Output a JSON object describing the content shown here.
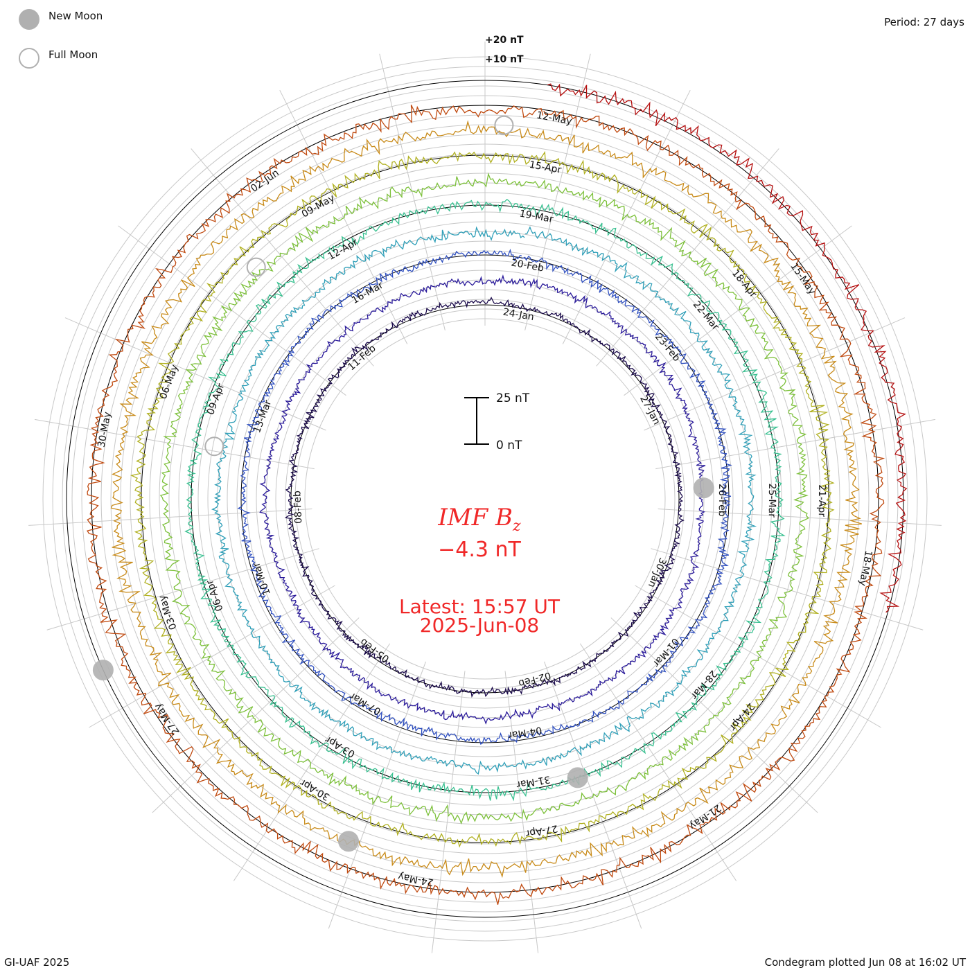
{
  "header": {
    "legend_new_moon": "New Moon",
    "legend_full_moon": "Full Moon",
    "period": "Period: 27 days",
    "scale_top": "+20 nT",
    "scale_second": "+10 nT"
  },
  "footer": {
    "left": "GI-UAF 2025",
    "right": "Condegram plotted Jun 08 at 16:02 UT"
  },
  "center": {
    "scale_top": "25 nT",
    "scale_bottom": "0 nT",
    "title_main": "IMF B",
    "title_sub": "z",
    "value": "−4.3 nT",
    "latest_label": "Latest: 15:57 UT",
    "latest_date": "2025-Jun-08"
  },
  "colors": {
    "ring_0": "#1a0a4a",
    "ring_1": "#2a1a9a",
    "ring_2": "#3050c0",
    "ring_3": "#2f9fb8",
    "ring_4": "#38c090",
    "ring_5": "#7cc03a",
    "ring_6": "#b0b020",
    "ring_7": "#c88a18",
    "ring_8": "#c04a10",
    "ring_9": "#b51010",
    "moon": "#b0b0b0",
    "grid": "#c8c8c8",
    "value_text": "#f02828"
  },
  "chart_data": {
    "type": "line",
    "title": "IMF Bz",
    "period_days": 27,
    "ylabel": "nT",
    "scale_bar": [
      0,
      25
    ],
    "latest": {
      "value_nT": -4.3,
      "time": "15:57 UT",
      "date": "2025-Jun-08"
    },
    "plotted": "Jun 08 at 16:02 UT",
    "series": [
      {
        "name": "ring-0",
        "dates": [
          "24-Jan",
          "27-Jan",
          "30-Jan",
          "02-Feb",
          "05-Feb",
          "08-Feb",
          "11-Feb"
        ],
        "approx_range_nT": [
          -15,
          15
        ]
      },
      {
        "name": "ring-1",
        "dates": [
          "20-Feb",
          "23-Feb",
          "26-Feb",
          "01-Mar",
          "04-Mar",
          "07-Mar",
          "10-Mar",
          "13-Mar",
          "16-Mar"
        ],
        "approx_range_nT": [
          -15,
          15
        ]
      },
      {
        "name": "ring-2",
        "dates": [
          "19-Mar",
          "22-Mar",
          "25-Mar",
          "28-Mar",
          "31-Mar",
          "03-Apr",
          "06-Apr",
          "09-Apr",
          "12-Apr"
        ],
        "approx_range_nT": [
          -15,
          15
        ]
      },
      {
        "name": "ring-3",
        "dates": [
          "15-Apr",
          "18-Apr",
          "21-Apr",
          "24-Apr",
          "27-Apr",
          "30-Apr",
          "03-May",
          "06-May",
          "09-May"
        ],
        "approx_range_nT": [
          -20,
          20
        ]
      },
      {
        "name": "ring-4",
        "dates": [
          "12-May",
          "15-May",
          "18-May",
          "21-May",
          "24-May",
          "27-May",
          "30-May",
          "02-Jun"
        ],
        "approx_range_nT": [
          -20,
          20
        ]
      }
    ],
    "moon_phases": [
      {
        "phase": "New Moon",
        "date": "30-Jan"
      },
      {
        "phase": "New Moon",
        "date": "28-Mar"
      },
      {
        "phase": "New Moon",
        "date": "27-Apr"
      },
      {
        "phase": "New Moon",
        "date": "27-May"
      },
      {
        "phase": "Full Moon",
        "date": "12-May"
      },
      {
        "phase": "Full Moon",
        "date": "12-Apr"
      },
      {
        "phase": "Full Moon",
        "date": "13-Mar"
      }
    ]
  }
}
